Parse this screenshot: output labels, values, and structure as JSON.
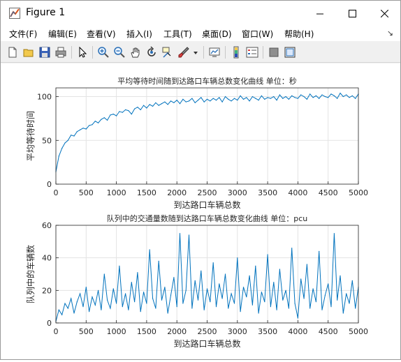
{
  "window": {
    "title": "Figure 1"
  },
  "menu": {
    "items": [
      "文件(F)",
      "编辑(E)",
      "查看(V)",
      "插入(I)",
      "工具(T)",
      "桌面(D)",
      "窗口(W)",
      "帮助(H)"
    ]
  },
  "toolbar": {
    "icons": [
      "new-figure-icon",
      "open-file-icon",
      "save-icon",
      "print-icon",
      "select-pointer-icon",
      "zoom-in-icon",
      "zoom-out-icon",
      "pan-hand-icon",
      "rotate-3d-icon",
      "data-cursor-icon",
      "brush-icon",
      "brush-dropdown-icon",
      "link-plot-icon",
      "colorbar-icon",
      "legend-icon",
      "hide-plot-tools-icon",
      "show-plot-tools-icon"
    ]
  },
  "chart_data": [
    {
      "type": "line",
      "title": "平均等待时间随到达路口车辆总数变化曲线  单位：秒",
      "xlabel": "到达路口车辆总数",
      "ylabel": "平均等待时间",
      "xlim": [
        0,
        5000
      ],
      "ylim": [
        0,
        110
      ],
      "xticks": [
        0,
        500,
        1000,
        1500,
        2000,
        2500,
        3000,
        3500,
        4000,
        4500,
        5000
      ],
      "yticks": [
        0,
        50,
        100
      ],
      "grid": true,
      "color": "#0072BD",
      "x": [
        0,
        50,
        100,
        150,
        200,
        250,
        300,
        350,
        400,
        450,
        500,
        550,
        600,
        650,
        700,
        750,
        800,
        850,
        900,
        950,
        1000,
        1050,
        1100,
        1150,
        1200,
        1250,
        1300,
        1350,
        1400,
        1450,
        1500,
        1550,
        1600,
        1650,
        1700,
        1750,
        1800,
        1850,
        1900,
        1950,
        2000,
        2050,
        2100,
        2150,
        2200,
        2250,
        2300,
        2350,
        2400,
        2450,
        2500,
        2550,
        2600,
        2650,
        2700,
        2750,
        2800,
        2850,
        2900,
        2950,
        3000,
        3050,
        3100,
        3150,
        3200,
        3250,
        3300,
        3350,
        3400,
        3450,
        3500,
        3550,
        3600,
        3650,
        3700,
        3750,
        3800,
        3850,
        3900,
        3950,
        4000,
        4050,
        4100,
        4150,
        4200,
        4250,
        4300,
        4350,
        4400,
        4450,
        4500,
        4550,
        4600,
        4650,
        4700,
        4750,
        4800,
        4850,
        4900,
        4950,
        5000
      ],
      "y": [
        14,
        32,
        41,
        47,
        50,
        56,
        55,
        60,
        62,
        64,
        63,
        67,
        68,
        72,
        70,
        74,
        76,
        73,
        79,
        80,
        78,
        83,
        82,
        85,
        84,
        80,
        86,
        88,
        85,
        90,
        87,
        91,
        89,
        93,
        90,
        92,
        94,
        91,
        95,
        93,
        96,
        92,
        97,
        94,
        95,
        98,
        93,
        96,
        99,
        94,
        97,
        95,
        98,
        96,
        99,
        94,
        100,
        97,
        95,
        98,
        96,
        101,
        97,
        99,
        95,
        100,
        98,
        96,
        101,
        97,
        99,
        98,
        100,
        96,
        102,
        98,
        100,
        97,
        101,
        99,
        98,
        102,
        100,
        97,
        103,
        99,
        101,
        98,
        102,
        100,
        99,
        103,
        101,
        98,
        104,
        100,
        102,
        99,
        101,
        98,
        103
      ]
    },
    {
      "type": "line",
      "title": "队列中的交通量数随到达路口车辆总数变化曲线  单位：pcu",
      "xlabel": "到达路口车辆总数",
      "ylabel": "队列中的车辆数",
      "xlim": [
        0,
        5000
      ],
      "ylim": [
        0,
        60
      ],
      "xticks": [
        0,
        500,
        1000,
        1500,
        2000,
        2500,
        3000,
        3500,
        4000,
        4500,
        5000
      ],
      "yticks": [
        0,
        20,
        40,
        60
      ],
      "grid": true,
      "color": "#0072BD",
      "x": [
        0,
        50,
        100,
        150,
        200,
        250,
        300,
        350,
        400,
        450,
        500,
        550,
        600,
        650,
        700,
        750,
        800,
        850,
        900,
        950,
        1000,
        1050,
        1100,
        1150,
        1200,
        1250,
        1300,
        1350,
        1400,
        1450,
        1500,
        1550,
        1600,
        1650,
        1700,
        1750,
        1800,
        1850,
        1900,
        1950,
        2000,
        2050,
        2100,
        2150,
        2200,
        2250,
        2300,
        2350,
        2400,
        2450,
        2500,
        2550,
        2600,
        2650,
        2700,
        2750,
        2800,
        2850,
        2900,
        2950,
        3000,
        3050,
        3100,
        3150,
        3200,
        3250,
        3300,
        3350,
        3400,
        3450,
        3500,
        3550,
        3600,
        3650,
        3700,
        3750,
        3800,
        3850,
        3900,
        3950,
        4000,
        4050,
        4100,
        4150,
        4200,
        4250,
        4300,
        4350,
        4400,
        4450,
        4500,
        4550,
        4600,
        4650,
        4700,
        4750,
        4800,
        4850,
        4900,
        4950,
        5000
      ],
      "y": [
        1,
        8,
        5,
        12,
        9,
        15,
        6,
        13,
        18,
        10,
        22,
        7,
        16,
        11,
        20,
        8,
        30,
        14,
        9,
        21,
        12,
        35,
        10,
        18,
        8,
        25,
        13,
        31,
        7,
        19,
        12,
        45,
        15,
        9,
        38,
        14,
        22,
        6,
        17,
        28,
        10,
        55,
        12,
        20,
        54,
        9,
        26,
        14,
        32,
        8,
        21,
        13,
        37,
        10,
        24,
        15,
        30,
        9,
        18,
        12,
        40,
        7,
        22,
        16,
        29,
        11,
        35,
        6,
        19,
        13,
        42,
        10,
        25,
        8,
        33,
        14,
        20,
        9,
        46,
        12,
        3,
        27,
        15,
        36,
        9,
        21,
        13,
        44,
        8,
        17,
        24,
        10,
        55,
        14,
        29,
        6,
        18,
        12,
        26,
        9,
        22
      ]
    }
  ]
}
